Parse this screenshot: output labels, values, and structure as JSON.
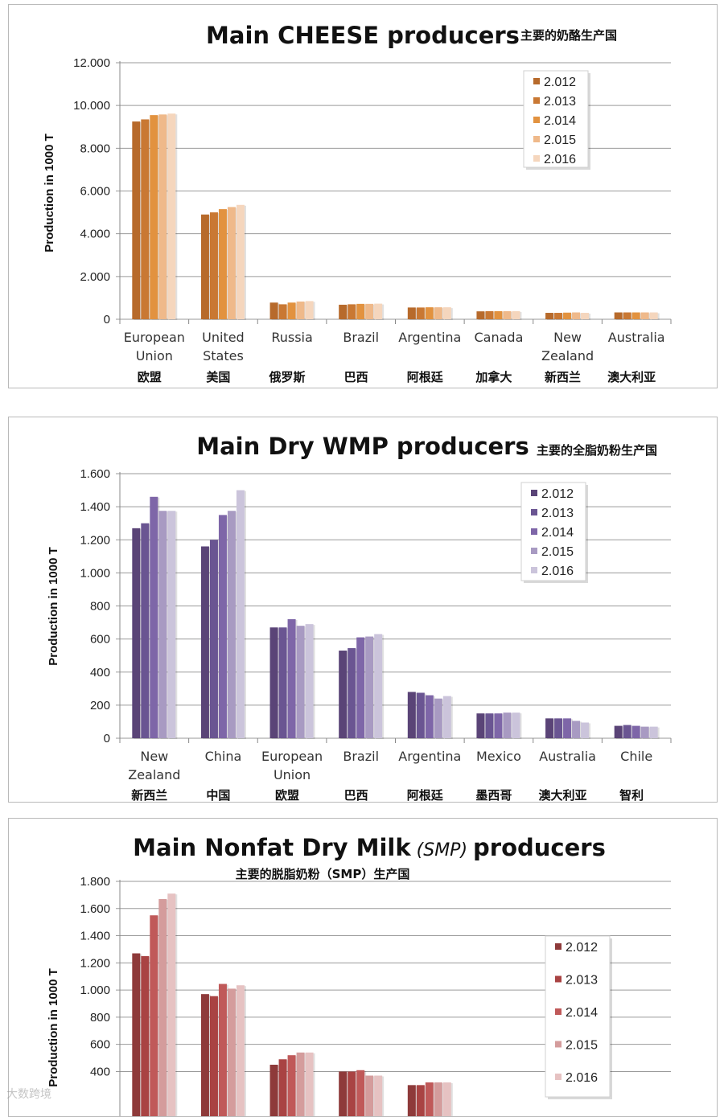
{
  "chart_data": [
    {
      "type": "bar",
      "title": "Main CHEESE producers",
      "subtitle": "主要的奶酪生产国",
      "ylabel": "Production in 1000 T",
      "ylim": [
        0,
        12000
      ],
      "yticks": [
        0,
        2000,
        4000,
        6000,
        8000,
        10000,
        12000
      ],
      "ytick_labels": [
        "0",
        "2.000",
        "4.000",
        "6.000",
        "8.000",
        "10.000",
        "12.000"
      ],
      "categories": [
        [
          "European",
          "Union"
        ],
        [
          "United",
          "States"
        ],
        [
          "Russia"
        ],
        [
          "Brazil"
        ],
        [
          "Argentina"
        ],
        [
          "Canada"
        ],
        [
          "New",
          "Zealand"
        ],
        [
          "Australia"
        ]
      ],
      "categories_cn": [
        "欧盟",
        "美国",
        "俄罗斯",
        "巴西",
        "阿根廷",
        "加拿大",
        "新西兰",
        "澳大利亚"
      ],
      "legend_position": "top-right",
      "series": [
        {
          "name": "2.012",
          "color": "#b76a2b",
          "values": [
            9250,
            4900,
            780,
            680,
            550,
            370,
            300,
            320
          ]
        },
        {
          "name": "2.013",
          "color": "#c97833",
          "values": [
            9350,
            5000,
            700,
            700,
            550,
            380,
            300,
            320
          ]
        },
        {
          "name": "2.014",
          "color": "#e2923f",
          "values": [
            9550,
            5150,
            780,
            720,
            560,
            380,
            310,
            320
          ]
        },
        {
          "name": "2.015",
          "color": "#efb98a",
          "values": [
            9580,
            5250,
            830,
            720,
            560,
            380,
            320,
            320
          ]
        },
        {
          "name": "2.016",
          "color": "#f5d6bd",
          "values": [
            9620,
            5350,
            850,
            730,
            560,
            380,
            300,
            320
          ]
        }
      ]
    },
    {
      "type": "bar",
      "title": "Main Dry WMP producers",
      "subtitle": "主要的全脂奶粉生产国",
      "ylabel": "Production in 1000 T",
      "ylim": [
        0,
        1600
      ],
      "yticks": [
        0,
        200,
        400,
        600,
        800,
        1000,
        1200,
        1400,
        1600
      ],
      "ytick_labels": [
        "0",
        "200",
        "400",
        "600",
        "800",
        "1.000",
        "1.200",
        "1.400",
        "1.600"
      ],
      "categories": [
        [
          "New",
          "Zealand"
        ],
        [
          "China"
        ],
        [
          "European",
          "Union"
        ],
        [
          "Brazil"
        ],
        [
          "Argentina"
        ],
        [
          "Mexico"
        ],
        [
          "Australia"
        ],
        [
          "Chile"
        ]
      ],
      "categories_cn": [
        "新西兰",
        "中国",
        "欧盟",
        "巴西",
        "阿根廷",
        "墨西哥",
        "澳大利亚",
        "智利"
      ],
      "legend_position": "top-right",
      "series": [
        {
          "name": "2.012",
          "color": "#5a4477",
          "values": [
            1270,
            1160,
            670,
            530,
            280,
            150,
            120,
            75
          ]
        },
        {
          "name": "2.013",
          "color": "#6a5592",
          "values": [
            1300,
            1200,
            670,
            545,
            275,
            150,
            120,
            80
          ]
        },
        {
          "name": "2.014",
          "color": "#7e66a8",
          "values": [
            1460,
            1350,
            720,
            610,
            260,
            150,
            120,
            75
          ]
        },
        {
          "name": "2.015",
          "color": "#a89ac2",
          "values": [
            1375,
            1375,
            680,
            615,
            240,
            155,
            105,
            70
          ]
        },
        {
          "name": "2.016",
          "color": "#cbc4db",
          "values": [
            1375,
            1500,
            690,
            630,
            255,
            155,
            95,
            70
          ]
        }
      ]
    },
    {
      "type": "bar",
      "title": "Main Nonfat Dry Milk",
      "title_italic": "(SMP)",
      "title_suffix": "producers",
      "subtitle": "主要的脱脂奶粉（SMP）生产国",
      "ylabel": "Production in 1000 T",
      "ylim": [
        0,
        1800
      ],
      "yticks": [
        400,
        600,
        800,
        1000,
        1200,
        1400,
        1600,
        1800
      ],
      "ytick_labels": [
        "400",
        "600",
        "800",
        "1.000",
        "1.200",
        "1.400",
        "1.600",
        "1.800"
      ],
      "legend_position": "right",
      "series": [
        {
          "name": "2.012",
          "color": "#8e3a3a",
          "values": [
            1270,
            970,
            450,
            400,
            300
          ]
        },
        {
          "name": "2.013",
          "color": "#a94343",
          "values": [
            1250,
            955,
            490,
            400,
            300
          ]
        },
        {
          "name": "2.014",
          "color": "#c05959",
          "values": [
            1550,
            1045,
            520,
            410,
            320
          ]
        },
        {
          "name": "2.015",
          "color": "#d49c9c",
          "values": [
            1670,
            1010,
            540,
            370,
            320
          ]
        },
        {
          "name": "2.016",
          "color": "#e6c2c2",
          "values": [
            1710,
            1035,
            540,
            370,
            320
          ]
        }
      ]
    }
  ],
  "watermark": "大数跨境"
}
